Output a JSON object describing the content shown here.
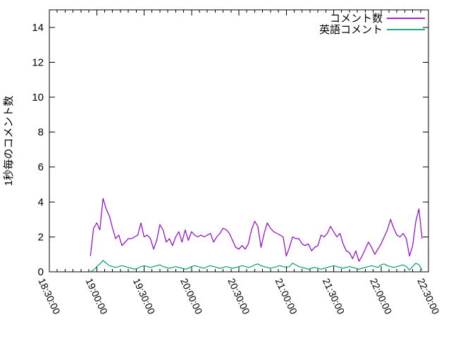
{
  "figure": {
    "background_color": "#ffffff",
    "axis_color": "#000000"
  },
  "chart_data": {
    "type": "line",
    "title": "",
    "xlabel": "",
    "ylabel": "1秒毎のコメント数",
    "grid": false,
    "legend_position": "top-right-inside",
    "ylim": [
      0,
      15
    ],
    "y_ticks": [
      0,
      2,
      4,
      6,
      8,
      10,
      12,
      14
    ],
    "xlim_minutes": [
      0,
      240
    ],
    "x_tick_minutes": [
      0,
      30,
      60,
      90,
      120,
      150,
      180,
      210,
      240
    ],
    "x_tick_labels": [
      "18:30:00",
      "19:00:00",
      "19:30:00",
      "20:00:00",
      "20:30:00",
      "21:00:00",
      "21:30:00",
      "22:00:00",
      "22:30:00"
    ],
    "x_minor_step_minutes": 5,
    "x_minutes": [
      26,
      28,
      30,
      32,
      34,
      36,
      38,
      40,
      42,
      44,
      46,
      48,
      50,
      52,
      54,
      56,
      58,
      60,
      62,
      64,
      66,
      68,
      70,
      72,
      74,
      76,
      78,
      80,
      82,
      84,
      86,
      88,
      90,
      92,
      94,
      96,
      98,
      100,
      102,
      104,
      106,
      108,
      110,
      112,
      114,
      116,
      118,
      120,
      122,
      124,
      126,
      128,
      130,
      132,
      134,
      136,
      138,
      140,
      142,
      144,
      146,
      148,
      150,
      152,
      154,
      156,
      158,
      160,
      162,
      164,
      166,
      168,
      170,
      172,
      174,
      176,
      178,
      180,
      182,
      184,
      186,
      188,
      190,
      192,
      194,
      196,
      198,
      200,
      202,
      204,
      206,
      208,
      210,
      212,
      214,
      216,
      218,
      220,
      222,
      224,
      226,
      228,
      230,
      232,
      234,
      236
    ],
    "series": [
      {
        "name": "コメント数",
        "color": "#9400d3",
        "values": [
          0.9,
          2.5,
          2.8,
          2.4,
          4.2,
          3.6,
          3.2,
          2.5,
          1.9,
          2.1,
          1.5,
          1.7,
          1.9,
          1.9,
          2.0,
          2.1,
          2.8,
          2.0,
          2.1,
          1.9,
          1.3,
          1.8,
          2.7,
          2.4,
          1.7,
          1.9,
          1.5,
          2.0,
          2.3,
          1.7,
          2.4,
          1.8,
          2.3,
          2.1,
          2.0,
          2.1,
          2.0,
          2.1,
          2.2,
          1.7,
          2.0,
          2.2,
          2.5,
          2.4,
          2.2,
          1.8,
          1.4,
          1.3,
          1.5,
          1.3,
          1.6,
          2.4,
          2.9,
          2.6,
          1.4,
          2.2,
          2.8,
          2.5,
          2.3,
          2.2,
          2.1,
          2.0,
          0.9,
          1.4,
          2.0,
          1.9,
          1.9,
          1.6,
          1.5,
          1.6,
          1.2,
          1.4,
          1.5,
          2.1,
          2.0,
          2.2,
          2.6,
          2.3,
          2.0,
          2.2,
          1.6,
          1.2,
          1.1,
          0.75,
          1.2,
          0.6,
          0.9,
          1.3,
          1.7,
          1.4,
          1.0,
          1.3,
          1.6,
          2.0,
          2.4,
          3.0,
          2.5,
          2.1,
          2.0,
          2.2,
          1.9,
          0.9,
          1.5,
          2.9,
          3.6,
          1.9
        ]
      },
      {
        "name": "英語コメント",
        "color": "#009e73",
        "values": [
          0.0,
          0.1,
          0.3,
          0.45,
          0.65,
          0.5,
          0.35,
          0.3,
          0.25,
          0.3,
          0.35,
          0.3,
          0.25,
          0.2,
          0.15,
          0.2,
          0.3,
          0.35,
          0.3,
          0.25,
          0.3,
          0.35,
          0.4,
          0.3,
          0.25,
          0.2,
          0.25,
          0.3,
          0.25,
          0.2,
          0.15,
          0.2,
          0.3,
          0.35,
          0.3,
          0.25,
          0.2,
          0.3,
          0.35,
          0.3,
          0.25,
          0.2,
          0.25,
          0.3,
          0.25,
          0.2,
          0.25,
          0.3,
          0.35,
          0.3,
          0.25,
          0.3,
          0.4,
          0.45,
          0.35,
          0.3,
          0.25,
          0.2,
          0.25,
          0.3,
          0.35,
          0.3,
          0.25,
          0.3,
          0.5,
          0.4,
          0.3,
          0.25,
          0.2,
          0.15,
          0.2,
          0.25,
          0.2,
          0.15,
          0.2,
          0.25,
          0.3,
          0.35,
          0.3,
          0.25,
          0.2,
          0.25,
          0.3,
          0.25,
          0.2,
          0.15,
          0.2,
          0.25,
          0.3,
          0.35,
          0.3,
          0.25,
          0.4,
          0.45,
          0.35,
          0.3,
          0.25,
          0.3,
          0.35,
          0.4,
          0.3,
          0.1,
          0.3,
          0.5,
          0.4,
          0.1
        ]
      }
    ]
  }
}
